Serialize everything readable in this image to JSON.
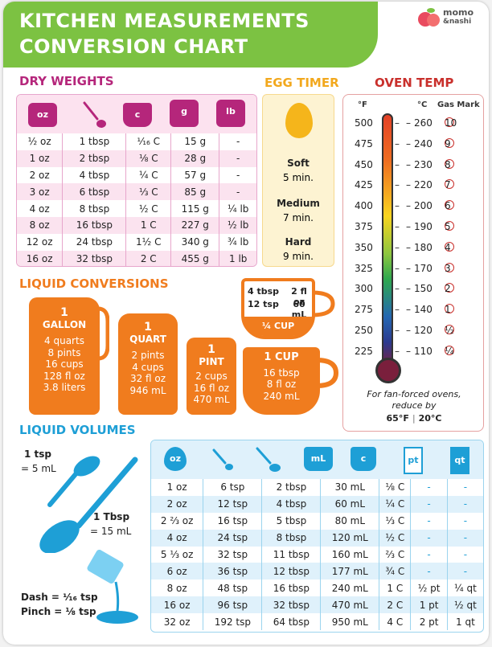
{
  "title": {
    "line1": "KITCHEN MEASUREMENTS",
    "line2": "CONVERSION CHART"
  },
  "logo": {
    "line1": "momo",
    "line2": "&nashi"
  },
  "colors": {
    "green": "#7cc242",
    "purple": "#b5267b",
    "yellow": "#f2a81d",
    "red": "#c9302c",
    "orange": "#f07c1e",
    "blue": "#1e9fd6"
  },
  "dry": {
    "heading": "DRY WEIGHTS",
    "icons": [
      "oz",
      "spoon-icon",
      "c",
      "g",
      "lb"
    ],
    "rows": [
      [
        "½ oz",
        "1 tbsp",
        "¹⁄₁₆ C",
        "15 g",
        "-"
      ],
      [
        "1 oz",
        "2 tbsp",
        "⅛ C",
        "28 g",
        "-"
      ],
      [
        "2 oz",
        "4 tbsp",
        "¼ C",
        "57 g",
        "-"
      ],
      [
        "3 oz",
        "6 tbsp",
        "⅓ C",
        "85 g",
        "-"
      ],
      [
        "4 oz",
        "8 tbsp",
        "½ C",
        "115 g",
        "¼ lb"
      ],
      [
        "8 oz",
        "16 tbsp",
        "1 C",
        "227 g",
        "½ lb"
      ],
      [
        "12 oz",
        "24 tbsp",
        "1½ C",
        "340 g",
        "¾ lb"
      ],
      [
        "16 oz",
        "32 tbsp",
        "2 C",
        "455 g",
        "1 lb"
      ]
    ]
  },
  "egg": {
    "heading": "EGG TIMER",
    "items": [
      {
        "label": "Soft",
        "time": "5 min."
      },
      {
        "label": "Medium",
        "time": "7 min."
      },
      {
        "label": "Hard",
        "time": "9 min."
      }
    ]
  },
  "oven": {
    "heading": "OVEN TEMP",
    "col_f": "°F",
    "col_c": "°C",
    "col_gas": "Gas Mark",
    "rows": [
      [
        "500",
        "260",
        "10"
      ],
      [
        "475",
        "240",
        "9"
      ],
      [
        "450",
        "230",
        "8"
      ],
      [
        "425",
        "220",
        "7"
      ],
      [
        "400",
        "200",
        "6"
      ],
      [
        "375",
        "190",
        "5"
      ],
      [
        "350",
        "180",
        "4"
      ],
      [
        "325",
        "170",
        "3"
      ],
      [
        "300",
        "150",
        "2"
      ],
      [
        "275",
        "140",
        "1"
      ],
      [
        "250",
        "120",
        "½"
      ],
      [
        "225",
        "110",
        "¼"
      ]
    ],
    "note1": "For fan-forced ovens,",
    "note2": "reduce by",
    "reduce_f": "65°F",
    "reduce_c": "20°C"
  },
  "liquid_conv": {
    "heading": "LIQUID CONVERSIONS",
    "gallon": {
      "qty": "1",
      "name": "GALLON",
      "lines": [
        "4 quarts",
        "8 pints",
        "16 cups",
        "128 fl oz",
        "3.8 liters"
      ]
    },
    "quart": {
      "qty": "1",
      "name": "QUART",
      "lines": [
        "2 pints",
        "4 cups",
        "32 fl oz",
        "946 mL"
      ]
    },
    "pint": {
      "qty": "1",
      "name": "PINT",
      "lines": [
        "2 cups",
        "16 fl oz",
        "470 mL"
      ]
    },
    "cup": {
      "qty": "1",
      "name": "CUP",
      "lines": [
        "16 tbsp",
        "8 fl oz",
        "240 mL"
      ]
    },
    "quarter_cup": {
      "a": "4 tbsp",
      "b": "2 fl oz",
      "c": "12 tsp",
      "d": "60 mL",
      "name": "¼ CUP"
    }
  },
  "liquid_vol": {
    "heading": "LIQUID VOLUMES",
    "tsp_label": "1 tsp",
    "tsp_value": "= 5 mL",
    "tbsp_label": "1 Tbsp",
    "tbsp_value": "= 15 mL",
    "dash": "Dash = ¹⁄₁₆ tsp",
    "pinch": "Pinch = ⅛ tsp",
    "icons": [
      "oz",
      "tsp-icon",
      "tbsp-icon",
      "mL",
      "c",
      "pt",
      "qt"
    ],
    "rows": [
      [
        "1 oz",
        "6 tsp",
        "2 tbsp",
        "30 mL",
        "⅛ C",
        "-",
        "-"
      ],
      [
        "2 oz",
        "12 tsp",
        "4 tbsp",
        "60 mL",
        "¼ C",
        "-",
        "-"
      ],
      [
        "2 ⅔ oz",
        "16 tsp",
        "5 tbsp",
        "80 mL",
        "⅓ C",
        "-",
        "-"
      ],
      [
        "4 oz",
        "24 tsp",
        "8 tbsp",
        "120 mL",
        "½ C",
        "-",
        "-"
      ],
      [
        "5 ⅓ oz",
        "32 tsp",
        "11 tbsp",
        "160 mL",
        "⅔ C",
        "-",
        "-"
      ],
      [
        "6 oz",
        "36 tsp",
        "12 tbsp",
        "177 mL",
        "¾ C",
        "-",
        "-"
      ],
      [
        "8 oz",
        "48 tsp",
        "16 tbsp",
        "240 mL",
        "1 C",
        "½ pt",
        "¼ qt"
      ],
      [
        "16 oz",
        "96 tsp",
        "32 tbsp",
        "470 mL",
        "2 C",
        "1 pt",
        "½ qt"
      ],
      [
        "32 oz",
        "192 tsp",
        "64 tbsp",
        "950 mL",
        "4 C",
        "2 pt",
        "1 qt"
      ]
    ]
  }
}
